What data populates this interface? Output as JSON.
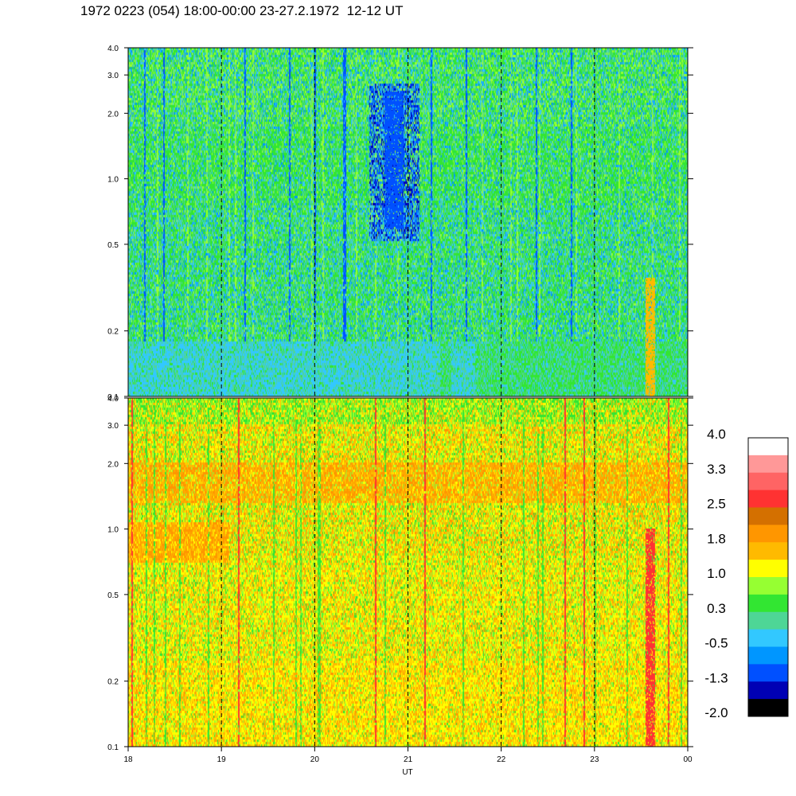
{
  "title": "1972 0223 (054) 18:00-00:00 23-27.2.1972  12-12 UT",
  "chart_data": {
    "type": "heatmap",
    "xlabel": "UT",
    "x_tick_labels": [
      "18",
      "19",
      "20",
      "21",
      "22",
      "23",
      "00"
    ],
    "x_tick_hours": [
      18,
      19,
      20,
      21,
      22,
      23,
      24
    ],
    "xlim": [
      18,
      24
    ],
    "dashed_hours": [
      19,
      20,
      21,
      22,
      23
    ],
    "panels": [
      {
        "name": "upper",
        "y_scale": "log",
        "ylim": [
          0.1,
          4.0
        ],
        "y_tick_values": [
          0.1,
          0.2,
          0.5,
          1.0,
          2.0,
          3.0,
          4.0
        ],
        "y_tick_labels": [
          "0.1",
          "0.2",
          "0.5",
          "1.0",
          "2.0",
          "3.0",
          "4.0"
        ],
        "dominant_level": "0.3",
        "features": [
          {
            "hour_start": 23.55,
            "hour_end": 23.65,
            "level": "1.8",
            "y_range": [
              0.1,
              0.35
            ]
          },
          {
            "hour_start": 20.75,
            "hour_end": 20.95,
            "level": "-1.3",
            "y_range": [
              0.6,
              2.5
            ]
          }
        ]
      },
      {
        "name": "lower",
        "y_scale": "log",
        "ylim": [
          0.1,
          4.0
        ],
        "y_tick_values": [
          0.1,
          0.2,
          0.5,
          1.0,
          2.0,
          3.0,
          4.0
        ],
        "y_tick_labels": [
          "0.1",
          "0.2",
          "0.5",
          "1.0",
          "2.0",
          "3.0",
          "4.0"
        ],
        "dominant_level": "1.0",
        "features": [
          {
            "hour_start": 23.55,
            "hour_end": 23.65,
            "level": "2.5",
            "y_range": [
              0.1,
              1.0
            ]
          }
        ]
      }
    ],
    "colorbar": {
      "tick_labels": [
        "4.0",
        "3.3",
        "2.5",
        "1.8",
        "1.0",
        "0.3",
        "-0.5",
        "-1.3",
        "-2.0"
      ],
      "colors_top_to_bottom": [
        "#ffffff",
        "#ff9898",
        "#ff6464",
        "#ff3232",
        "#d47000",
        "#ff9600",
        "#ffba00",
        "#ffff00",
        "#96ff32",
        "#32e632",
        "#4ed696",
        "#32c8ff",
        "#0096ff",
        "#0050ff",
        "#0000b4",
        "#000000"
      ]
    },
    "palette": {
      "-2.0": "#000000",
      "-1.3": "#0050ff",
      "-0.5": "#32c8ff",
      "0.3": "#32e632",
      "1.0": "#ffff00",
      "1.8": "#ffba00",
      "2.5": "#ff3232",
      "3.3": "#ff9898",
      "4.0": "#ffffff"
    }
  }
}
